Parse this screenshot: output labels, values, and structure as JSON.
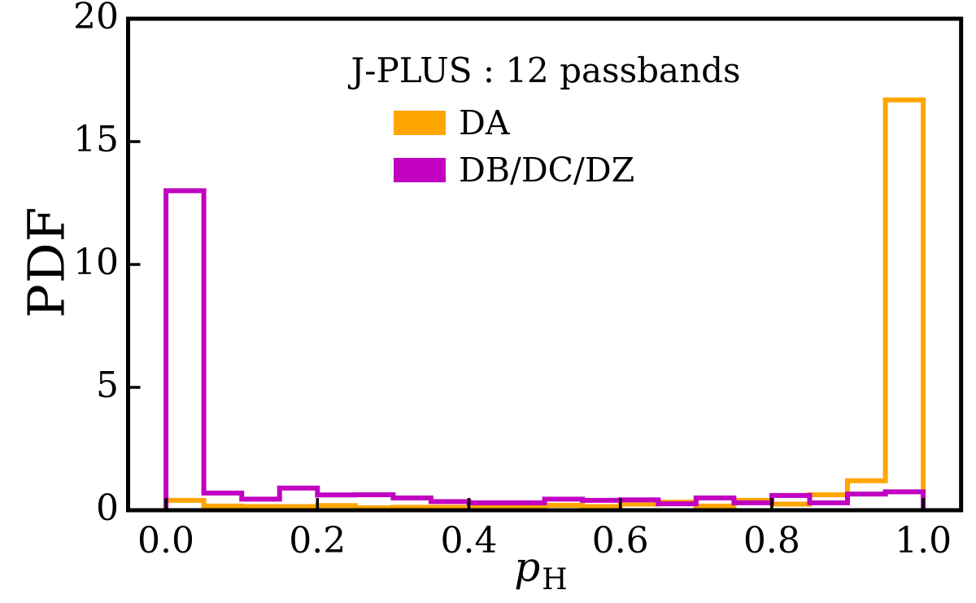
{
  "figure": {
    "background": "#ffffff",
    "axis_color": "#000000"
  },
  "chart_data": {
    "type": "histogram-step",
    "title": "J-PLUS : 12 passbands",
    "ylabel": "PDF",
    "xlabel_main": "p",
    "xlabel_sub": "H",
    "xlim": [
      -0.05,
      1.05
    ],
    "ylim": [
      0,
      20
    ],
    "grid": false,
    "legend_position": "upper center",
    "bin_edges": [
      0.0,
      0.05,
      0.1,
      0.15,
      0.2,
      0.25,
      0.3,
      0.35,
      0.4,
      0.45,
      0.5,
      0.55,
      0.6,
      0.65,
      0.7,
      0.75,
      0.8,
      0.85,
      0.9,
      0.95,
      1.0
    ],
    "series": [
      {
        "name": "DA",
        "color": "#FFA500",
        "values": [
          0.4,
          0.17,
          0.15,
          0.15,
          0.19,
          0.1,
          0.12,
          0.12,
          0.12,
          0.12,
          0.2,
          0.15,
          0.25,
          0.33,
          0.17,
          0.4,
          0.25,
          0.63,
          1.2,
          16.7
        ]
      },
      {
        "name": "DB/DC/DZ",
        "color": "#C100C1",
        "values": [
          13.0,
          0.7,
          0.45,
          0.9,
          0.62,
          0.63,
          0.5,
          0.35,
          0.3,
          0.3,
          0.45,
          0.4,
          0.42,
          0.26,
          0.5,
          0.3,
          0.6,
          0.3,
          0.66,
          0.75
        ]
      }
    ],
    "x_ticks": {
      "values": [
        0.0,
        0.2,
        0.4,
        0.6,
        0.8,
        1.0
      ],
      "labels": [
        "0.0",
        "0.2",
        "0.4",
        "0.6",
        "0.8",
        "1.0"
      ]
    },
    "y_ticks": {
      "values": [
        0,
        5,
        10,
        15,
        20
      ],
      "labels": [
        "0",
        "5",
        "10",
        "15",
        "20"
      ]
    }
  }
}
